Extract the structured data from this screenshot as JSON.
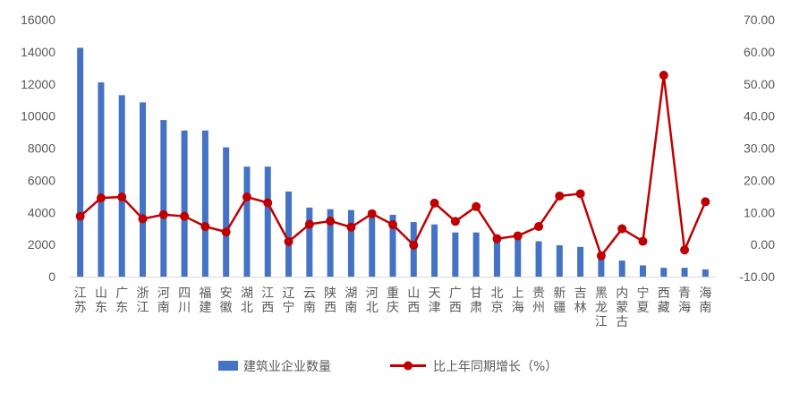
{
  "chart_data": {
    "type": "bar",
    "categories": [
      "江苏",
      "山东",
      "广东",
      "浙江",
      "河南",
      "四川",
      "福建",
      "安徽",
      "湖北",
      "江西",
      "辽宁",
      "云南",
      "陕西",
      "湖南",
      "河北",
      "重庆",
      "山西",
      "天津",
      "广西",
      "甘肃",
      "北京",
      "上海",
      "贵州",
      "新疆",
      "吉林",
      "黑龙江",
      "内蒙古",
      "宁夏",
      "西藏",
      "青海",
      "海南"
    ],
    "series": [
      {
        "name": "建筑业企业数量",
        "type": "bar",
        "axis": "left",
        "color": "#4472C4",
        "values": [
          14250,
          12100,
          11300,
          10850,
          9750,
          9100,
          9100,
          8050,
          6850,
          6850,
          5300,
          4300,
          4200,
          4150,
          4000,
          3850,
          3400,
          3250,
          2750,
          2750,
          2600,
          2550,
          2200,
          1950,
          1850,
          1500,
          1000,
          700,
          550,
          550,
          450
        ]
      },
      {
        "name": "比上年同期增长（%）",
        "type": "line",
        "axis": "right",
        "color": "#C00000",
        "values": [
          8.8,
          14.5,
          14.8,
          8.0,
          9.3,
          8.8,
          5.6,
          3.9,
          14.8,
          13.0,
          0.9,
          6.3,
          7.3,
          5.4,
          9.6,
          6.2,
          -0.2,
          12.9,
          7.2,
          11.8,
          1.8,
          2.7,
          5.6,
          15.1,
          15.8,
          -3.5,
          4.9,
          1.0,
          52.7,
          -1.7,
          13.3
        ]
      }
    ],
    "ylim_left": [
      0,
      16000
    ],
    "yticks_left": [
      "0",
      "2000",
      "4000",
      "6000",
      "8000",
      "10000",
      "12000",
      "14000",
      "16000"
    ],
    "ylim_right": [
      -10,
      70
    ],
    "yticks_right": [
      "-10.00",
      "0.00",
      "10.00",
      "20.00",
      "30.00",
      "40.00",
      "50.00",
      "60.00",
      "70.00"
    ],
    "legend_position": "bottom",
    "grid": false
  }
}
